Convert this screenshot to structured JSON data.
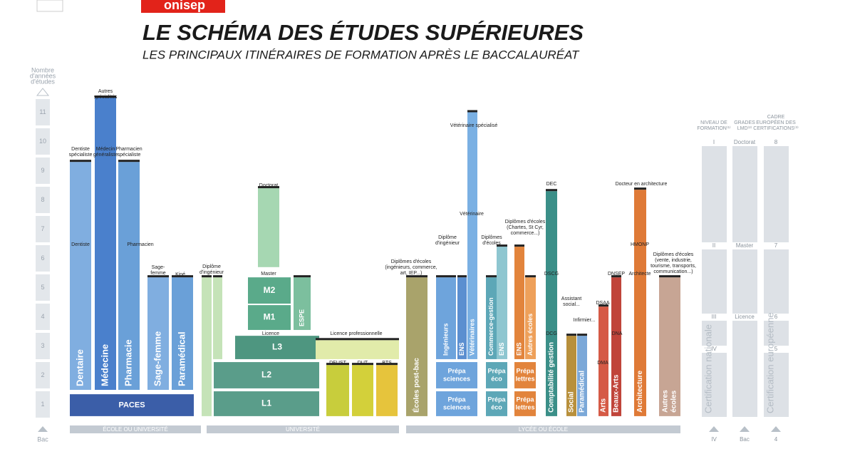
{
  "header": {
    "brand": "onisep",
    "title": "LE SCHÉMA DES ÉTUDES SUPÉRIEURES",
    "subtitle": "LES PRINCIPAUX ITINÉRAIRES DE FORMATION APRÈS LE BACCALAURÉAT"
  },
  "axis": {
    "caption": [
      "Nombre",
      "d'années",
      "d'études"
    ],
    "years": [
      1,
      2,
      3,
      4,
      5,
      6,
      7,
      8,
      9,
      10,
      11
    ],
    "origin": "Bac"
  },
  "sectors": [
    "ÉCOLE OU UNIVERSITÉ",
    "UNIVERSITÉ",
    "LYCÉE OU ÉCOLE"
  ],
  "blocks": [
    [
      "PACES"
    ],
    [
      "Dentaire"
    ],
    [
      "Médecine"
    ],
    [
      "Pharmacie"
    ],
    [
      "Sage-femme"
    ],
    [
      "Paramédical"
    ],
    [
      "L1"
    ],
    [
      "L2"
    ],
    [
      "L3"
    ],
    [
      "M1"
    ],
    [
      "M2"
    ],
    [
      "ESPE"
    ],
    [
      "Écoles post-bac"
    ],
    [
      "Prépa",
      "sciences"
    ],
    [
      "Prépa",
      "sciences"
    ],
    [
      "Ingénieurs"
    ],
    [
      "ENS"
    ],
    [
      "Vétérinaires"
    ],
    [
      "Prépa",
      "éco"
    ],
    [
      "Prépa",
      "éco"
    ],
    [
      "Commerce-gestion"
    ],
    [
      "ENS"
    ],
    [
      "Prépa",
      "lettres"
    ],
    [
      "Prépa",
      "lettres"
    ],
    [
      "ENS"
    ],
    [
      "Autres écoles"
    ],
    [
      "Comptabilité gestion"
    ],
    [
      "Social"
    ],
    [
      "Paramédical"
    ],
    [
      "Arts"
    ],
    [
      "Beaux-Arts"
    ],
    [
      "Architecture"
    ],
    [
      "Autres",
      "écoles"
    ]
  ],
  "notes": [
    [
      "Autres",
      "spécialités"
    ],
    [
      "Dentiste",
      "spécialiste"
    ],
    [
      "Médecin",
      "généraliste"
    ],
    [
      "Pharmacien",
      "spécialiste"
    ],
    [
      "Dentiste"
    ],
    [
      "Pharmacien"
    ],
    [
      "Sage-",
      "femme"
    ],
    [
      "Kiné..."
    ],
    [
      "Diplôme",
      "d'ingénieur"
    ],
    [
      "Doctorat"
    ],
    [
      "Master"
    ],
    [
      "Licence"
    ],
    [
      "Licence professionnelle"
    ],
    [
      "DEUST"
    ],
    [
      "DUT"
    ],
    [
      "BTS"
    ],
    [
      "Diplômes d'écoles",
      "(ingénieurs, commerce,",
      "art, IEP...)"
    ],
    [
      "Vétérinaire spécialisé"
    ],
    [
      "Vétérinaire"
    ],
    [
      "Diplôme",
      "d'ingénieur"
    ],
    [
      "Diplômes",
      "d'écoles"
    ],
    [
      "Diplômes d'écoles",
      "(Chartes, St Cyr,",
      "commerce...)"
    ],
    [
      "DEC"
    ],
    [
      "DSCG"
    ],
    [
      "DCG"
    ],
    [
      "Assistant",
      "social..."
    ],
    [
      "Infirmier..."
    ],
    [
      "DSAA"
    ],
    [
      "DNSEP"
    ],
    [
      "DNA"
    ],
    [
      "DMA"
    ],
    [
      "Docteur en architecture"
    ],
    [
      "HMONP"
    ],
    [
      "Architecte"
    ],
    [
      "Diplômes d'écoles",
      "(vente, industrie,",
      "tourisme, transports,",
      "communication...)"
    ]
  ],
  "levels": {
    "headers": [
      [
        "NIVEAU DE",
        "FORMATION⁽¹⁾"
      ],
      [
        "GRADES",
        "LMD⁽²⁾"
      ],
      [
        "CADRE",
        "EUROPÉEN DES",
        "CERTIFICATIONS⁽³⁾"
      ]
    ],
    "national": [
      "I",
      "II",
      "III",
      "IV"
    ],
    "lmd": [
      "Doctorat",
      "Master",
      "Licence",
      "Bac"
    ],
    "european": [
      "8",
      "7",
      "6",
      "5",
      "4"
    ],
    "captions": [
      "Certification nationale",
      "Certification européenne"
    ]
  }
}
